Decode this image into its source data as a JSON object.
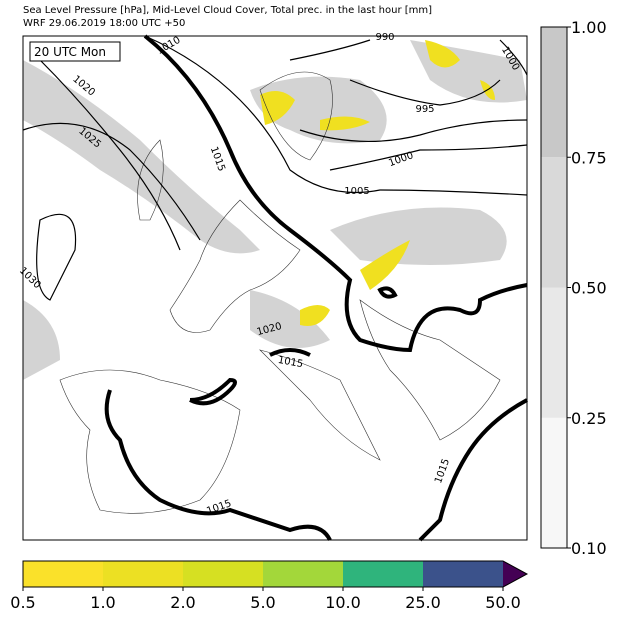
{
  "header": {
    "line1": "Sea Level Pressure [hPa], Mid-Level Cloud Cover, Total prec. in the last hour [mm]",
    "line2": "WRF 29.06.2019 18:00 UTC +50"
  },
  "map": {
    "time_label": "20 UTC Mon",
    "contour_labels": [
      "1010",
      "1020",
      "1025",
      "1030",
      "1015",
      "990",
      "1000",
      "995",
      "1000",
      "1005",
      "1020",
      "1015",
      "1015",
      "1015"
    ]
  },
  "cloud_colorbar": {
    "colors": [
      "#f7f7f7",
      "#e8e8e8",
      "#d9d9d9",
      "#c8c8c8"
    ],
    "labels": [
      "1.00",
      "0.75",
      "0.50",
      "0.25",
      "0.10"
    ]
  },
  "precip_colorbar": {
    "colors": [
      "#fae12a",
      "#ece023",
      "#d6e022",
      "#a3d73a",
      "#2fb47c",
      "#3b528b"
    ],
    "extend_color": "#440154",
    "labels": [
      "0.5",
      "1.0",
      "2.0",
      "5.0",
      "10.0",
      "25.0",
      "50.0"
    ]
  }
}
